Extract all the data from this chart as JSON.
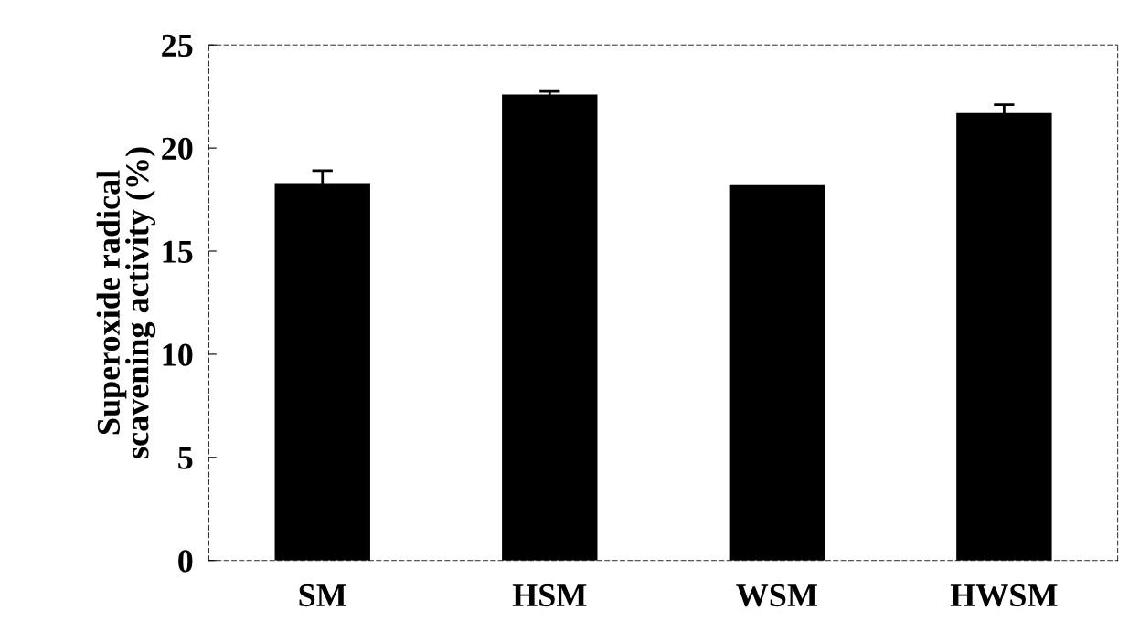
{
  "chart_data": {
    "type": "bar",
    "ylabel": "Superoxide radical\nscavening activity (%)",
    "categories": [
      "SM",
      "HSM",
      "WSM",
      "HWSM"
    ],
    "values": [
      18.3,
      22.6,
      18.2,
      21.7
    ],
    "errors": [
      0.6,
      0.15,
      null,
      0.4
    ],
    "color": "#000000",
    "ylim": [
      0,
      25
    ],
    "yticks": [
      0,
      5,
      10,
      15,
      20,
      25
    ],
    "grid": false
  }
}
